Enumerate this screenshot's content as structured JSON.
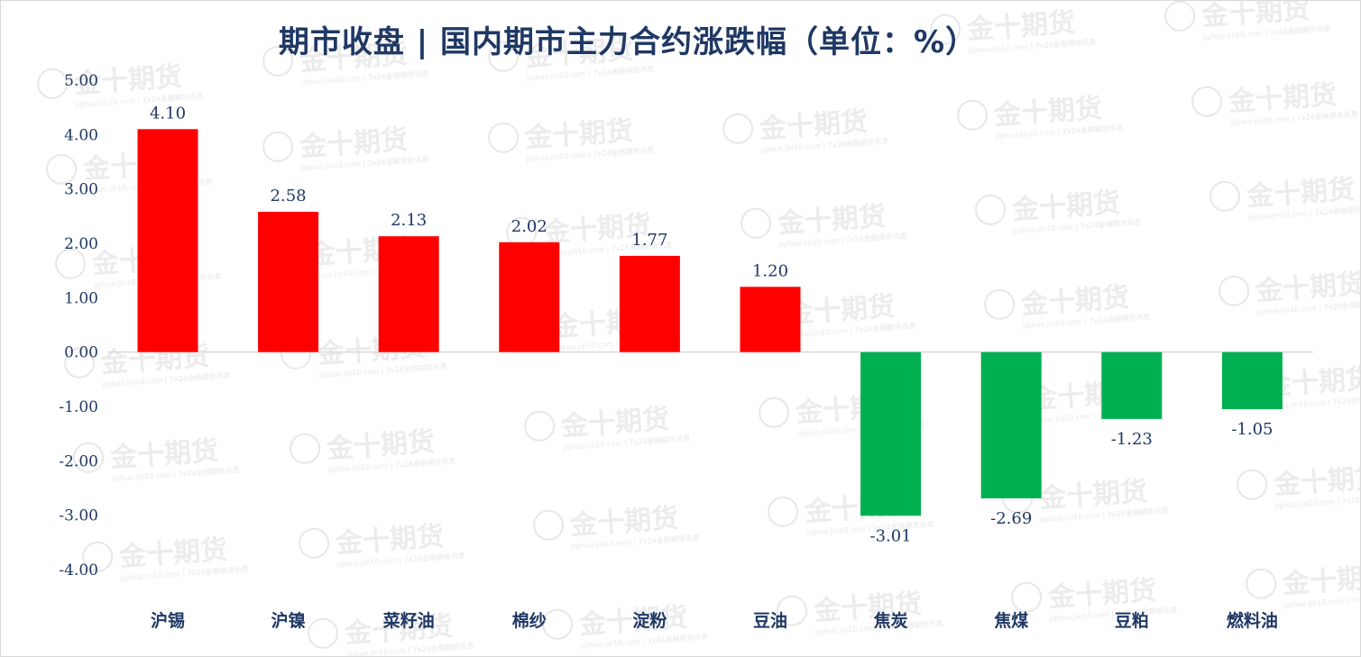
{
  "title": "期市收盘 | 国内期市主力合约涨跌幅（单位：%）",
  "watermark": {
    "brand": "金十期货",
    "subtext": "jqihuo.jin10.com | 7x24金融期货讯息"
  },
  "colors": {
    "positive": "#ff0000",
    "negative": "#00b050",
    "text": "#1f3864",
    "axis": "#d9d9d9"
  },
  "chart_data": {
    "type": "bar",
    "title": "期市收盘 | 国内期市主力合约涨跌幅（单位：%）",
    "categories": [
      "沪锡",
      "沪镍",
      "菜籽油",
      "棉纱",
      "淀粉",
      "豆油",
      "焦炭",
      "焦煤",
      "豆粕",
      "燃料油"
    ],
    "values": [
      4.1,
      2.58,
      2.13,
      2.02,
      1.77,
      1.2,
      -3.01,
      -2.69,
      -1.23,
      -1.05
    ],
    "value_labels": [
      "4.10",
      "2.58",
      "2.13",
      "2.02",
      "1.77",
      "1.20",
      "-3.01",
      "-2.69",
      "-1.23",
      "-1.05"
    ],
    "yticks": [
      "5.00",
      "4.00",
      "3.00",
      "2.00",
      "1.00",
      "0.00",
      "-1.00",
      "-2.00",
      "-3.00",
      "-4.00"
    ],
    "ylim": [
      -4,
      5
    ],
    "xlabel": "",
    "ylabel": "",
    "grid": false,
    "legend": "none"
  }
}
